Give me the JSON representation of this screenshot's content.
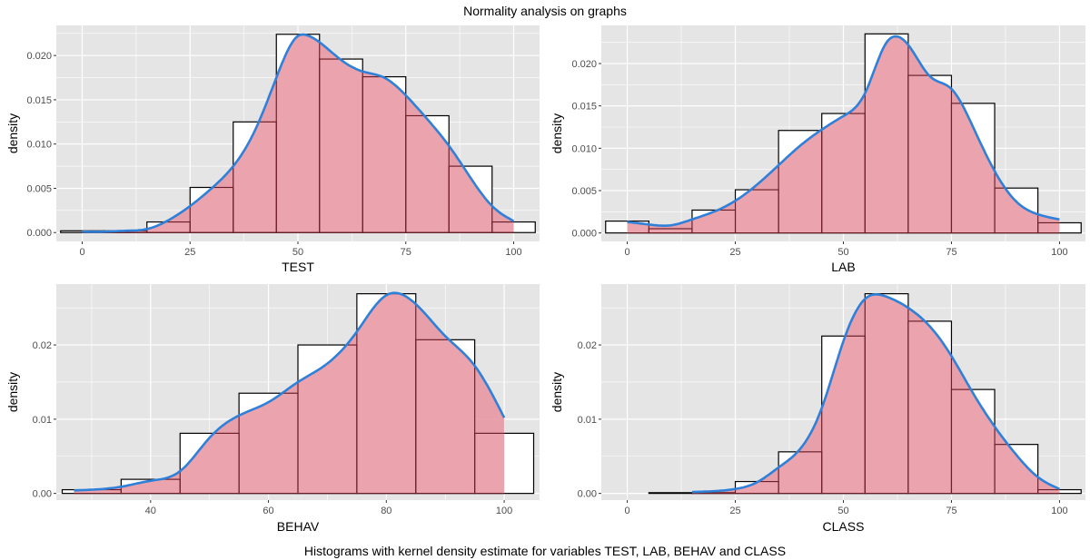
{
  "title": "Normality analysis on graphs",
  "caption": "Histograms with kernel density estimate for variables TEST, LAB, BEHAV and CLASS",
  "colors": {
    "panel_bg": "#e5e5e5",
    "grid": "#ffffff",
    "hist_fill": "#ffffff",
    "hist_stroke": "#000000",
    "area_fill": "#e8939f",
    "area_stroke": "#6b1e26",
    "density_line": "#2f80d9",
    "tick_text": "#4d4d4d"
  },
  "chart_data": [
    {
      "type": "histogram+density",
      "xlabel": "TEST",
      "ylabel": "density",
      "xlim": [
        -6,
        106
      ],
      "ylim": [
        -0.001,
        0.0234
      ],
      "xticks": [
        0,
        25,
        50,
        75,
        100
      ],
      "xtick_labels": [
        "0",
        "25",
        "50",
        "75",
        "100"
      ],
      "yticks": [
        0,
        0.005,
        0.01,
        0.015,
        0.02
      ],
      "ytick_labels": [
        "0.000",
        "0.005",
        "0.010",
        "0.015",
        "0.020"
      ],
      "histogram": {
        "bin_starts": [
          -5,
          5,
          15,
          25,
          35,
          45,
          55,
          65,
          75,
          85,
          95
        ],
        "bin_width": 10,
        "values": [
          0.0002,
          0.0002,
          0.0012,
          0.0051,
          0.0125,
          0.0224,
          0.0196,
          0.0176,
          0.0132,
          0.0075,
          0.0012
        ]
      },
      "density": {
        "x": [
          0,
          5,
          10,
          15,
          20,
          25,
          30,
          35,
          40,
          45,
          50,
          52,
          55,
          60,
          65,
          70,
          75,
          80,
          85,
          90,
          95,
          100
        ],
        "y": [
          0.0001,
          0.0001,
          0.0002,
          0.0004,
          0.0014,
          0.003,
          0.005,
          0.0075,
          0.0115,
          0.0175,
          0.0222,
          0.0223,
          0.0215,
          0.0195,
          0.0182,
          0.0175,
          0.0155,
          0.0128,
          0.0098,
          0.0062,
          0.003,
          0.0013
        ]
      }
    },
    {
      "type": "histogram+density",
      "xlabel": "LAB",
      "ylabel": "density",
      "xlim": [
        -6,
        106
      ],
      "ylim": [
        -0.001,
        0.0245
      ],
      "xticks": [
        0,
        25,
        50,
        75,
        100
      ],
      "xtick_labels": [
        "0",
        "25",
        "50",
        "75",
        "100"
      ],
      "yticks": [
        0,
        0.005,
        0.01,
        0.015,
        0.02
      ],
      "ytick_labels": [
        "0.000",
        "0.005",
        "0.010",
        "0.015",
        "0.020"
      ],
      "histogram": {
        "bin_starts": [
          -5,
          5,
          15,
          25,
          35,
          45,
          55,
          65,
          75,
          85,
          95
        ],
        "bin_width": 10,
        "values": [
          0.0014,
          0.0005,
          0.0027,
          0.0051,
          0.0121,
          0.0141,
          0.0235,
          0.0186,
          0.0153,
          0.0053,
          0.0012
        ]
      },
      "density": {
        "x": [
          0,
          5,
          10,
          15,
          20,
          25,
          30,
          35,
          40,
          45,
          50,
          55,
          60,
          62,
          65,
          70,
          75,
          80,
          85,
          90,
          95,
          100
        ],
        "y": [
          0.0013,
          0.001,
          0.0009,
          0.0016,
          0.0025,
          0.0038,
          0.0057,
          0.008,
          0.0103,
          0.0122,
          0.0138,
          0.0165,
          0.0225,
          0.0232,
          0.0222,
          0.0185,
          0.017,
          0.0125,
          0.0073,
          0.0037,
          0.0022,
          0.0016
        ]
      }
    },
    {
      "type": "histogram+density",
      "xlabel": "BEHAV",
      "ylabel": "density",
      "xlim": [
        24,
        106
      ],
      "ylim": [
        -0.0009,
        0.0282
      ],
      "xticks": [
        40,
        60,
        80,
        100
      ],
      "xtick_labels": [
        "40",
        "60",
        "80",
        "100"
      ],
      "yticks": [
        0,
        0.01,
        0.02
      ],
      "ytick_labels": [
        "0.00",
        "0.01",
        "0.02"
      ],
      "histogram": {
        "bin_starts": [
          25,
          35,
          45,
          55,
          65,
          75,
          85,
          95
        ],
        "bin_width": 10,
        "values": [
          0.0005,
          0.0019,
          0.0081,
          0.0135,
          0.02,
          0.0269,
          0.0207,
          0.0081
        ]
      },
      "density": {
        "x": [
          27,
          30,
          35,
          40,
          45,
          50,
          55,
          60,
          65,
          70,
          75,
          80,
          85,
          90,
          95,
          100
        ],
        "y": [
          0.0004,
          0.0005,
          0.0009,
          0.0017,
          0.003,
          0.0075,
          0.0105,
          0.0123,
          0.015,
          0.0175,
          0.0218,
          0.0267,
          0.0255,
          0.0212,
          0.0172,
          0.0102
        ]
      }
    },
    {
      "type": "histogram+density",
      "xlabel": "CLASS",
      "ylabel": "density",
      "xlim": [
        -6,
        106
      ],
      "ylim": [
        -0.0009,
        0.0282
      ],
      "xticks": [
        0,
        25,
        50,
        75,
        100
      ],
      "xtick_labels": [
        "0",
        "25",
        "50",
        "75",
        "100"
      ],
      "yticks": [
        0,
        0.01,
        0.02
      ],
      "ytick_labels": [
        "0.00",
        "0.01",
        "0.02"
      ],
      "histogram": {
        "bin_starts": [
          5,
          15,
          25,
          35,
          45,
          55,
          65,
          75,
          85,
          95
        ],
        "bin_width": 10,
        "values": [
          0.0001,
          0.0001,
          0.0016,
          0.0056,
          0.0212,
          0.0269,
          0.0232,
          0.014,
          0.0066,
          0.0005
        ]
      },
      "density": {
        "x": [
          15,
          20,
          25,
          30,
          35,
          40,
          45,
          50,
          55,
          58,
          60,
          65,
          70,
          75,
          80,
          85,
          90,
          95,
          100
        ],
        "y": [
          0.0002,
          0.0003,
          0.0006,
          0.0015,
          0.0035,
          0.006,
          0.0115,
          0.0205,
          0.0262,
          0.0268,
          0.0265,
          0.025,
          0.0225,
          0.0185,
          0.0135,
          0.009,
          0.0052,
          0.0022,
          0.0006
        ]
      }
    }
  ]
}
